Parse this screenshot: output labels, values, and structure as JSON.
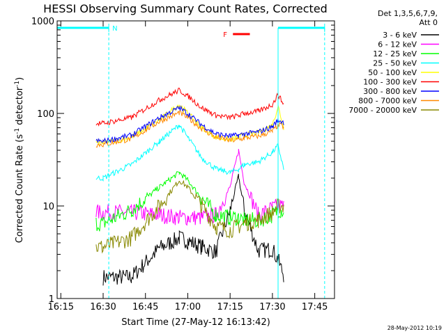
{
  "chart_data": {
    "type": "line",
    "title": "HESSI Observing Summary Count Rates, Corrected",
    "xlabel": "Start Time (27-May-12 16:13:42)",
    "ylabel": "Corrected Count Rate (s⁻¹ detector⁻¹)",
    "ylabel_main": "Corrected Count Rate (s",
    "ylabel_sup1": "-1",
    "ylabel_mid": " detector",
    "ylabel_sup2": "-1",
    "ylabel_end": ")",
    "y_scale": "log",
    "ylim": [
      1,
      1000
    ],
    "xlim": [
      "16:13:42",
      "17:52:00"
    ],
    "x_ticks": [
      "16:15",
      "16:30",
      "16:45",
      "17:00",
      "17:15",
      "17:30",
      "17:45"
    ],
    "y_ticks": [
      "1",
      "10",
      "100",
      "1000"
    ],
    "legend_header": [
      "Det 1,3,5,6,7,9,",
      "Att 0"
    ],
    "legend_placement": "right",
    "footer_date": "28-May-2012 10:19",
    "annotations": {
      "night_label": "N",
      "flare_label": "F",
      "night_color": "#00ffff",
      "flare_color": "#ff0000",
      "night_bars": [
        [
          "16:13:42",
          "16:32:00"
        ],
        [
          "17:32:00",
          "17:48:30"
        ]
      ],
      "night_vlines": [
        "16:32:00",
        "17:32:00",
        "17:48:30"
      ],
      "flare_bar": [
        "17:16:00",
        "17:22:00"
      ]
    },
    "time_keys": [
      "16:27:30",
      "16:30:00",
      "16:40:00",
      "16:50:00",
      "16:57:00",
      "17:00:00",
      "17:05:00",
      "17:10:00",
      "17:15:00",
      "17:18:00",
      "17:20:00",
      "17:25:00",
      "17:30:00",
      "17:32:00",
      "17:34:00"
    ],
    "series": [
      {
        "name": "3 - 6 keV",
        "color": "#000000",
        "values": [
          null,
          1.7,
          1.7,
          3.5,
          4.5,
          4.2,
          3.6,
          3.2,
          9,
          21,
          9,
          3.3,
          3.4,
          2.6,
          1.8
        ]
      },
      {
        "name": "6 - 12 keV",
        "color": "#ff00ff",
        "values": [
          8.5,
          8.5,
          8.5,
          8,
          7.5,
          7.5,
          7.5,
          8,
          16,
          40,
          18,
          8,
          9.5,
          10,
          10
        ]
      },
      {
        "name": "12 - 25 keV",
        "color": "#00ff00",
        "values": [
          6.5,
          6.5,
          9,
          16,
          23,
          19,
          12,
          8,
          7.5,
          7.5,
          7,
          7,
          8,
          9,
          9
        ]
      },
      {
        "name": "25 - 50 keV",
        "color": "#00ffff",
        "values": [
          20,
          20,
          28,
          50,
          75,
          55,
          33,
          25,
          23,
          25,
          28,
          30,
          38,
          45,
          25
        ]
      },
      {
        "name": "50 - 100 keV",
        "color": "#ffff00",
        "values": [
          48,
          48,
          55,
          85,
          125,
          100,
          70,
          55,
          52,
          55,
          58,
          62,
          75,
          120,
          70
        ]
      },
      {
        "name": "100 - 300 keV",
        "color": "#ff0000",
        "values": [
          78,
          78,
          90,
          140,
          178,
          155,
          115,
          95,
          90,
          95,
          100,
          105,
          125,
          160,
          125
        ]
      },
      {
        "name": "300 - 800 keV",
        "color": "#0000ff",
        "values": [
          50,
          50,
          58,
          90,
          115,
          100,
          75,
          60,
          57,
          58,
          60,
          63,
          72,
          85,
          80
        ]
      },
      {
        "name": "800 - 7000 keV",
        "color": "#ff8800",
        "values": [
          46,
          46,
          53,
          82,
          102,
          90,
          68,
          55,
          51,
          52,
          54,
          57,
          64,
          75,
          72
        ]
      },
      {
        "name": "7000 - 20000 keV",
        "color": "#888800",
        "values": [
          3.6,
          3.6,
          4.5,
          10,
          19,
          16,
          10,
          6,
          5.5,
          6,
          6.5,
          7,
          8.5,
          10,
          10
        ]
      }
    ]
  }
}
